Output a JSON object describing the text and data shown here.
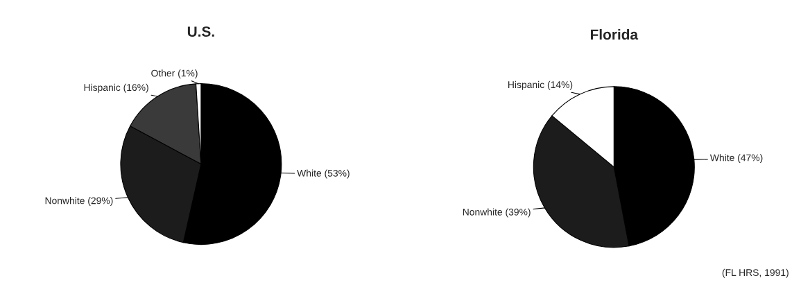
{
  "chart_data": [
    {
      "type": "pie",
      "title": "U.S.",
      "categories": [
        "White (53%)",
        "Nonwhite (29%)",
        "Hispanic (16%)",
        "Other (1%)"
      ],
      "values": [
        53,
        29,
        16,
        1
      ],
      "colors": [
        "#000000",
        "#1c1c1c",
        "#3a3a3a",
        "#ffffff"
      ]
    },
    {
      "type": "pie",
      "title": "Florida",
      "categories": [
        "White (47%)",
        "Nonwhite (39%)",
        "Hispanic (14%)"
      ],
      "values": [
        47,
        39,
        14
      ],
      "colors": [
        "#000000",
        "#1c1c1c",
        "#ffffff"
      ],
      "annotations": [
        "(FL HRS, 1991)"
      ]
    }
  ]
}
